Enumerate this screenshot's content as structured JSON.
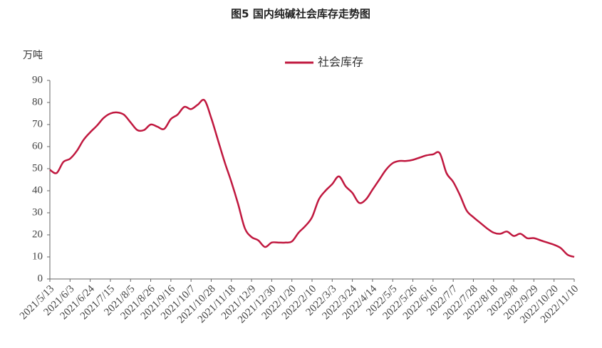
{
  "chart_data": {
    "type": "line",
    "title": "图5 国内纯碱社会库存走势图",
    "y_label": "万吨",
    "categories": [
      "2021/5/13",
      null,
      null,
      "2021/6/3",
      null,
      null,
      "2021/6/24",
      null,
      null,
      "2021/7/15",
      null,
      null,
      "2021/8/5",
      null,
      null,
      "2021/8/26",
      null,
      null,
      "2021/9/16",
      null,
      null,
      "2021/10/7",
      null,
      null,
      "2021/10/28",
      null,
      null,
      "2021/11/18",
      null,
      null,
      "2021/12/9",
      null,
      null,
      "2021/12/30",
      null,
      null,
      "2022/1/20",
      null,
      null,
      "2022/2/10",
      null,
      null,
      "2022/3/3",
      null,
      null,
      "2022/3/24",
      null,
      null,
      "2022/4/14",
      null,
      null,
      "2022/5/5",
      null,
      null,
      "2022/5/26",
      null,
      null,
      "2022/6/16",
      null,
      null,
      "2022/7/7",
      null,
      null,
      "2022/7/28",
      null,
      null,
      "2022/8/18",
      null,
      null,
      "2022/9/8",
      null,
      null,
      "2022/9/29",
      null,
      null,
      "2022/10/20",
      null,
      null,
      "2022/11/10"
    ],
    "series": [
      {
        "name": "社会库存",
        "color": "#c0183f",
        "values": [
          49.5,
          48,
          53,
          54.5,
          58,
          63,
          66.5,
          69.5,
          73,
          75,
          75.5,
          74.5,
          71,
          67.5,
          67.5,
          70,
          69,
          68,
          72.5,
          74.5,
          78,
          77,
          79,
          81,
          73,
          63,
          53,
          44,
          34,
          23,
          19,
          17.5,
          14.5,
          16.5,
          16.5,
          16.5,
          17,
          21,
          24,
          28,
          36,
          40,
          43,
          46.5,
          42,
          39,
          34.5,
          36,
          40.5,
          45,
          49.5,
          52.5,
          53.5,
          53.5,
          54,
          55,
          56,
          56.5,
          57,
          48,
          44,
          38,
          31,
          28,
          25.5,
          23,
          21,
          20.5,
          21.5,
          19.5,
          20.5,
          18.5,
          18.5,
          17.5,
          16.5,
          15.5,
          14,
          11,
          10
        ]
      }
    ],
    "ylim": [
      0,
      90
    ],
    "yticks": [
      0,
      10,
      20,
      30,
      40,
      50,
      60,
      70,
      80,
      90
    ],
    "grid": false,
    "legend": "top"
  }
}
